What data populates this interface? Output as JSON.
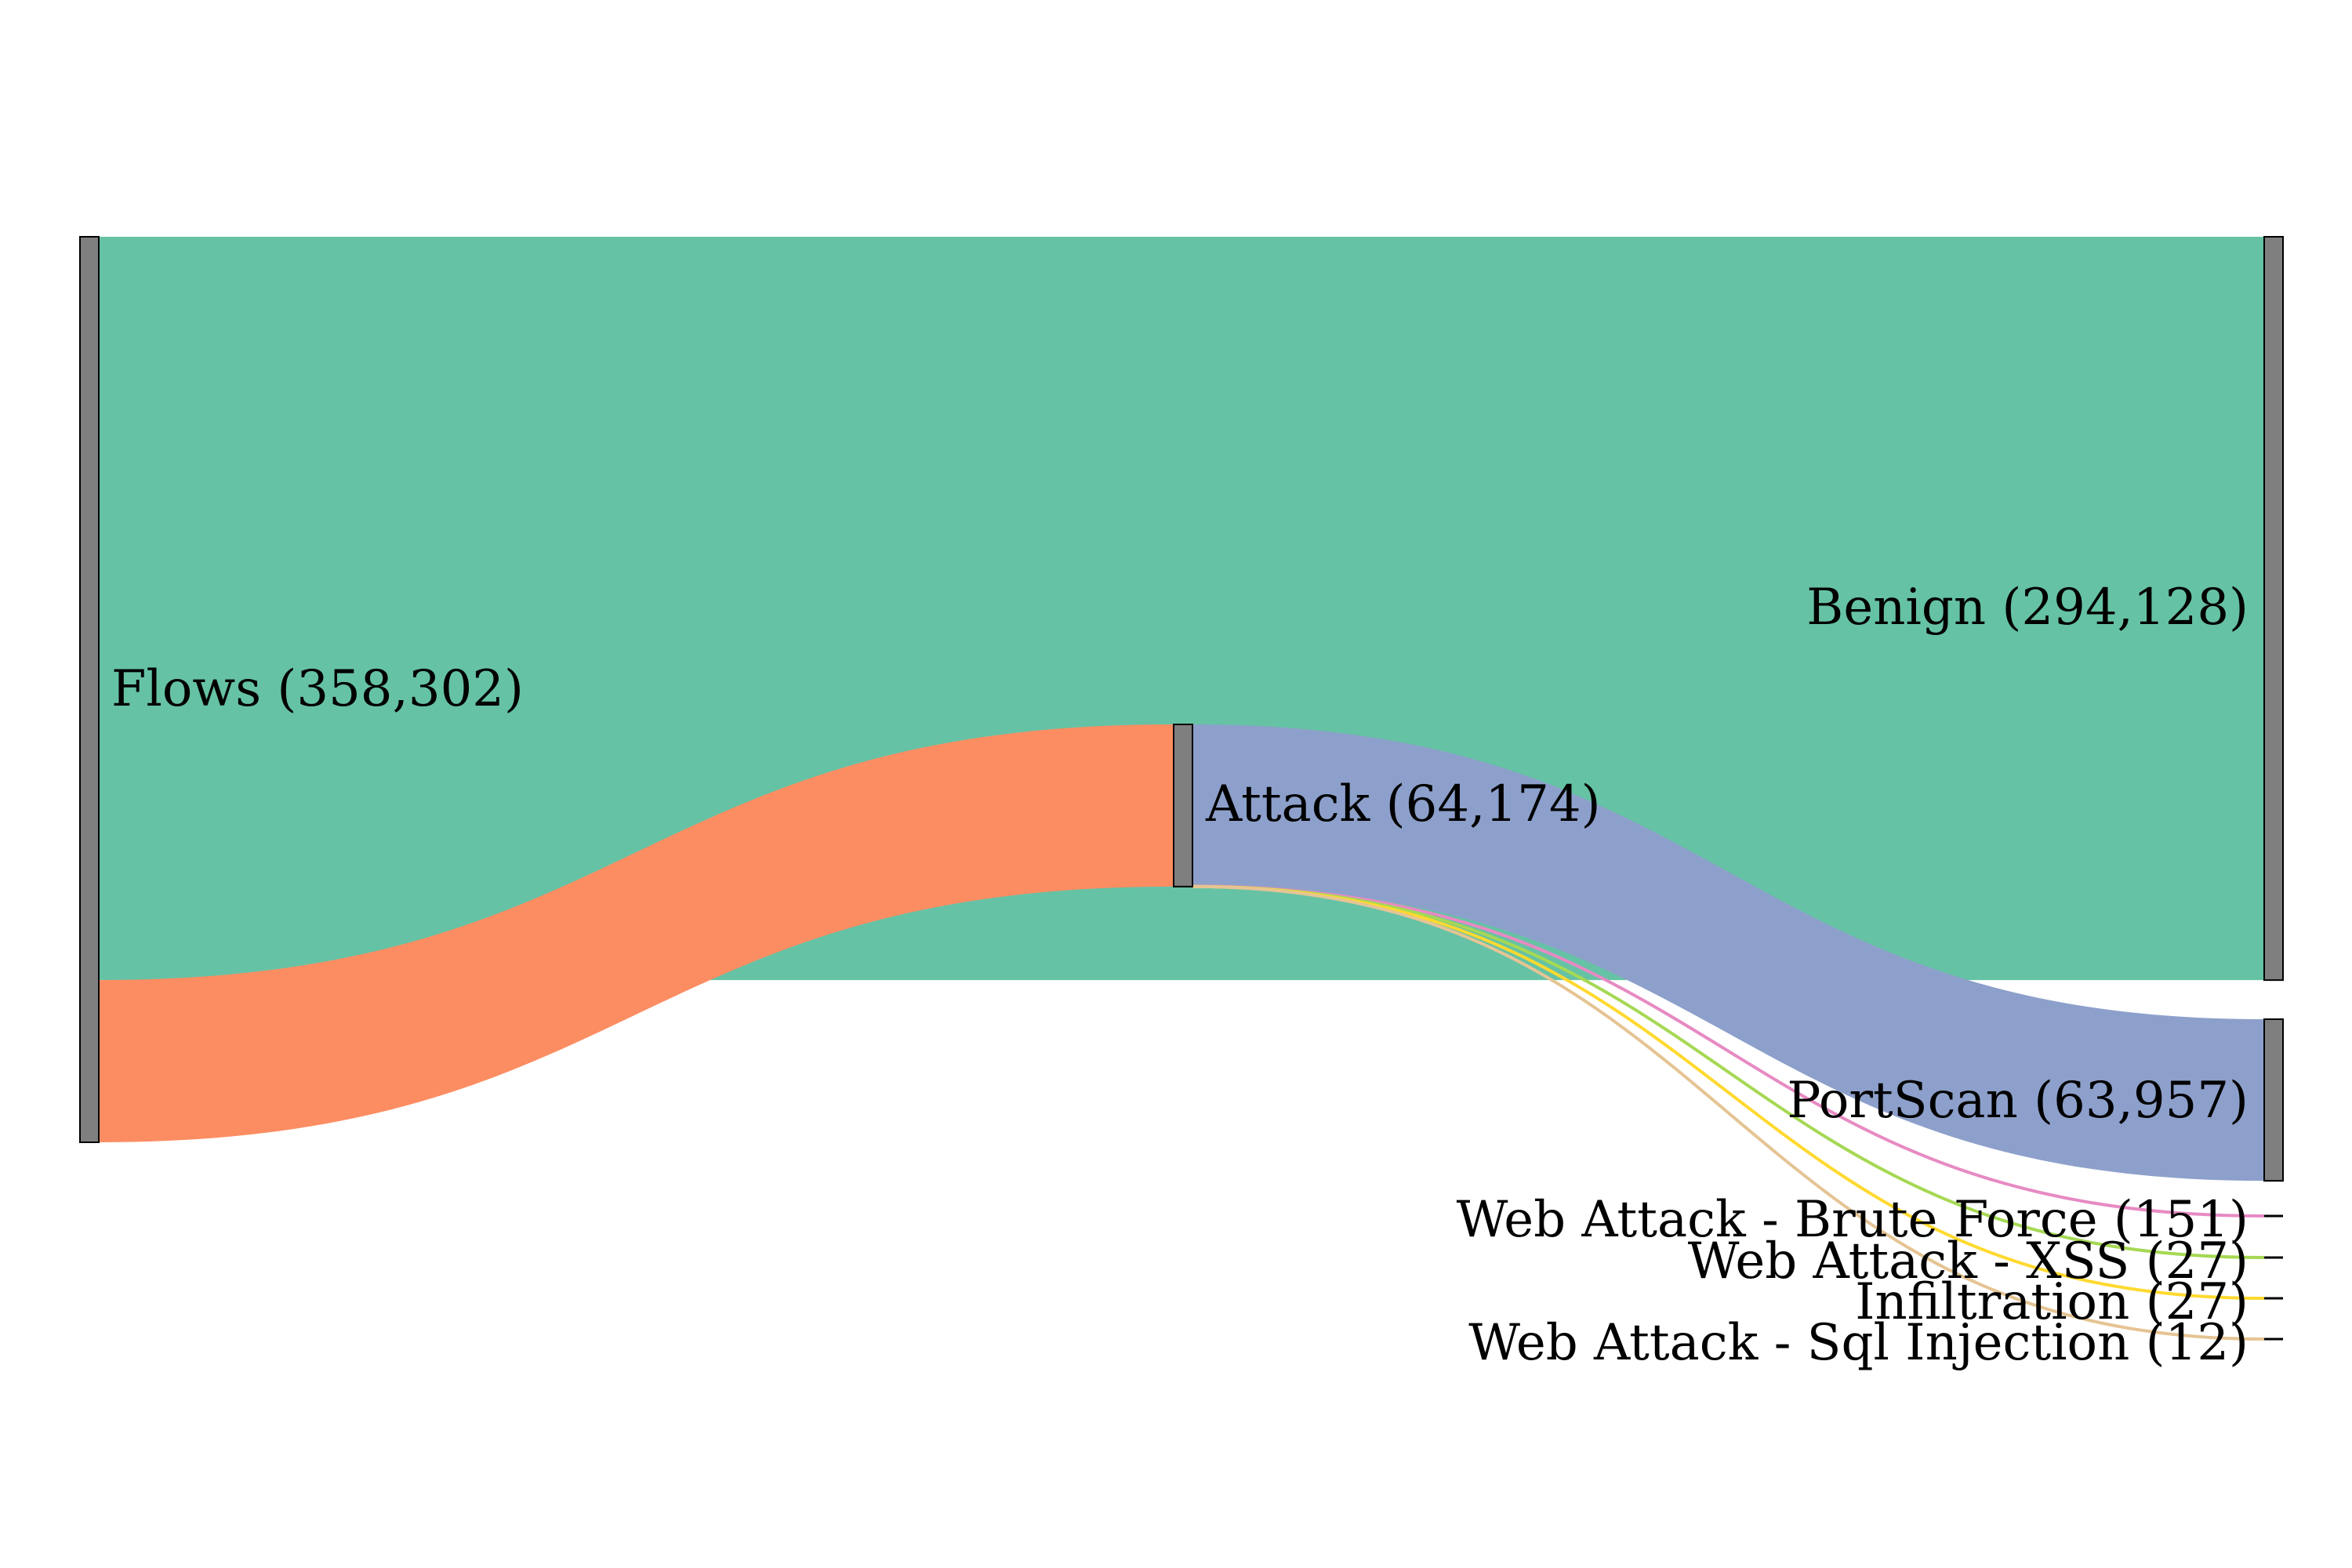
{
  "chart_data": {
    "type": "sankey",
    "nodes": [
      {
        "id": "flows",
        "label": "Flows (358,302)",
        "value": 358302
      },
      {
        "id": "attack",
        "label": "Attack (64,174)",
        "value": 64174
      },
      {
        "id": "benign",
        "label": "Benign (294,128)",
        "value": 294128
      },
      {
        "id": "portscan",
        "label": "PortScan (63,957)",
        "value": 63957
      },
      {
        "id": "brute",
        "label": "Web Attack - Brute Force (151)",
        "value": 151
      },
      {
        "id": "xss",
        "label": "Web Attack - XSS (27)",
        "value": 27
      },
      {
        "id": "infil",
        "label": "Infiltration (27)",
        "value": 27
      },
      {
        "id": "sql",
        "label": "Web Attack - Sql Injection (12)",
        "value": 12
      }
    ],
    "links": [
      {
        "source": "flows",
        "target": "benign",
        "value": 294128,
        "color": "#66c2a5"
      },
      {
        "source": "flows",
        "target": "attack",
        "value": 64174,
        "color": "#fc8d62"
      },
      {
        "source": "attack",
        "target": "portscan",
        "value": 63957,
        "color": "#8da0cb"
      },
      {
        "source": "attack",
        "target": "brute",
        "value": 151,
        "color": "#e78ac3"
      },
      {
        "source": "attack",
        "target": "xss",
        "value": 27,
        "color": "#a6d854"
      },
      {
        "source": "attack",
        "target": "infil",
        "value": 27,
        "color": "#ffd92f"
      },
      {
        "source": "attack",
        "target": "sql",
        "value": 12,
        "color": "#e5c494"
      }
    ]
  }
}
